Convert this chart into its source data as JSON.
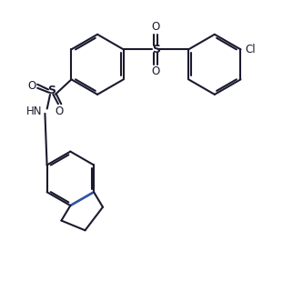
{
  "bg_color": "#ffffff",
  "line_color": "#1a1a2e",
  "line_width": 1.5,
  "figsize": [
    3.33,
    3.2
  ],
  "dpi": 100,
  "xlim": [
    0,
    10
  ],
  "ylim": [
    0,
    9.6
  ]
}
